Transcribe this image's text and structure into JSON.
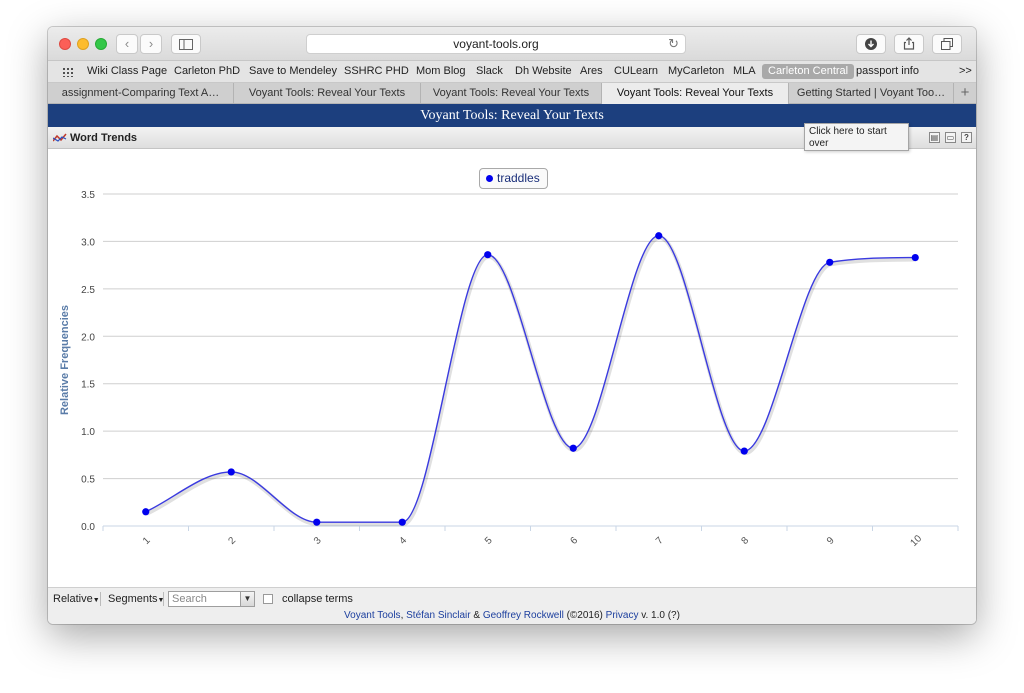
{
  "browser": {
    "url": "voyant-tools.org",
    "bookmarks": [
      "Wiki Class Page",
      "Carleton PhD",
      "Save to Mendeley",
      "SSHRC PHD",
      "Mom Blog",
      "Slack",
      "Dh Website",
      "Ares",
      "CULearn",
      "MyCarleton",
      "MLA",
      "Carleton Central",
      "passport info"
    ],
    "more_bookmarks": ">>",
    "tabs": [
      "assignment-Comparing Text A…",
      "Voyant Tools: Reveal Your Texts",
      "Voyant Tools: Reveal Your Texts",
      "Voyant Tools: Reveal Your Texts",
      "Getting Started | Voyant Too…"
    ],
    "active_tab": 3
  },
  "page": {
    "header_title": "Voyant Tools: Reveal Your Texts",
    "panel_title": "Word Trends",
    "tooltip": "Click here to start over"
  },
  "toolbar_bottom": {
    "relative_label": "Relative",
    "segments_label": "Segments",
    "search_placeholder": "Search",
    "collapse_label": "collapse terms"
  },
  "footer": {
    "voyant": "Voyant Tools",
    "comma": ", ",
    "sinclair": "Stéfan Sinclair",
    "amp": " & ",
    "rockwell": "Geoffrey Rockwell",
    "year": " (©2016) ",
    "privacy": "Privacy",
    "version": " v. 1.0 (?)"
  },
  "colors": {
    "line": "#3a3ae0",
    "point": "#0000ee",
    "header": "#1c3f7e",
    "axis_label": "#5a7ca8"
  },
  "chart_data": {
    "type": "line",
    "legend": [
      "traddles"
    ],
    "ylabel": "Relative Frequencies",
    "ylim": [
      0,
      3.5
    ],
    "yticks": [
      "0.0",
      "0.5",
      "1.0",
      "1.5",
      "2.0",
      "2.5",
      "3.0",
      "3.5"
    ],
    "categories": [
      "1",
      "2",
      "3",
      "4",
      "5",
      "6",
      "7",
      "8",
      "9",
      "10"
    ],
    "series": [
      {
        "name": "traddles",
        "values": [
          0.15,
          0.57,
          0.04,
          0.04,
          2.86,
          0.82,
          3.06,
          0.79,
          2.78,
          2.83
        ]
      }
    ]
  }
}
